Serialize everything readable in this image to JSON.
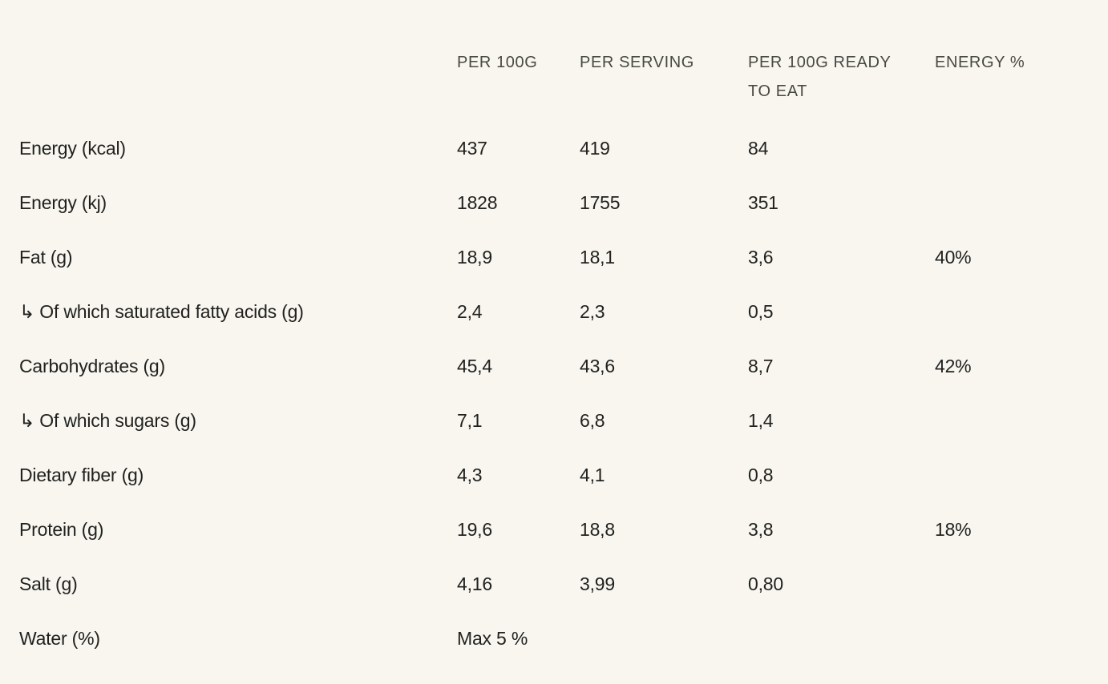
{
  "page": {
    "background_color": "#F8F6EF",
    "text_color": "#21221F",
    "header_color": "#494943"
  },
  "table": {
    "columns": [
      "PER 100G",
      "PER SERVING",
      "PER 100G READY TO EAT",
      "ENERGY %"
    ],
    "rows": [
      {
        "label": "Energy (kcal)",
        "per_100g": "437",
        "per_serving": "419",
        "per_100g_ready_to_eat": "84",
        "energy_percent": ""
      },
      {
        "label": "Energy (kj)",
        "per_100g": "1828",
        "per_serving": "1755",
        "per_100g_ready_to_eat": "351",
        "energy_percent": ""
      },
      {
        "label": "Fat (g)",
        "per_100g": "18,9",
        "per_serving": "18,1",
        "per_100g_ready_to_eat": "3,6",
        "energy_percent": "40%"
      },
      {
        "label": "↳ Of which saturated fatty acids (g)",
        "per_100g": "2,4",
        "per_serving": "2,3",
        "per_100g_ready_to_eat": "0,5",
        "energy_percent": ""
      },
      {
        "label": "Carbohydrates (g)",
        "per_100g": "45,4",
        "per_serving": "43,6",
        "per_100g_ready_to_eat": "8,7",
        "energy_percent": "42%"
      },
      {
        "label": "↳ Of which sugars (g)",
        "per_100g": "7,1",
        "per_serving": "6,8",
        "per_100g_ready_to_eat": "1,4",
        "energy_percent": ""
      },
      {
        "label": "Dietary fiber (g)",
        "per_100g": "4,3",
        "per_serving": "4,1",
        "per_100g_ready_to_eat": "0,8",
        "energy_percent": ""
      },
      {
        "label": "Protein (g)",
        "per_100g": "19,6",
        "per_serving": "18,8",
        "per_100g_ready_to_eat": "3,8",
        "energy_percent": "18%"
      },
      {
        "label": "Salt (g)",
        "per_100g": "4,16",
        "per_serving": "3,99",
        "per_100g_ready_to_eat": "0,80",
        "energy_percent": ""
      },
      {
        "label": "Water (%)",
        "per_100g": "Max 5 %",
        "per_serving": "",
        "per_100g_ready_to_eat": "",
        "energy_percent": ""
      }
    ]
  }
}
